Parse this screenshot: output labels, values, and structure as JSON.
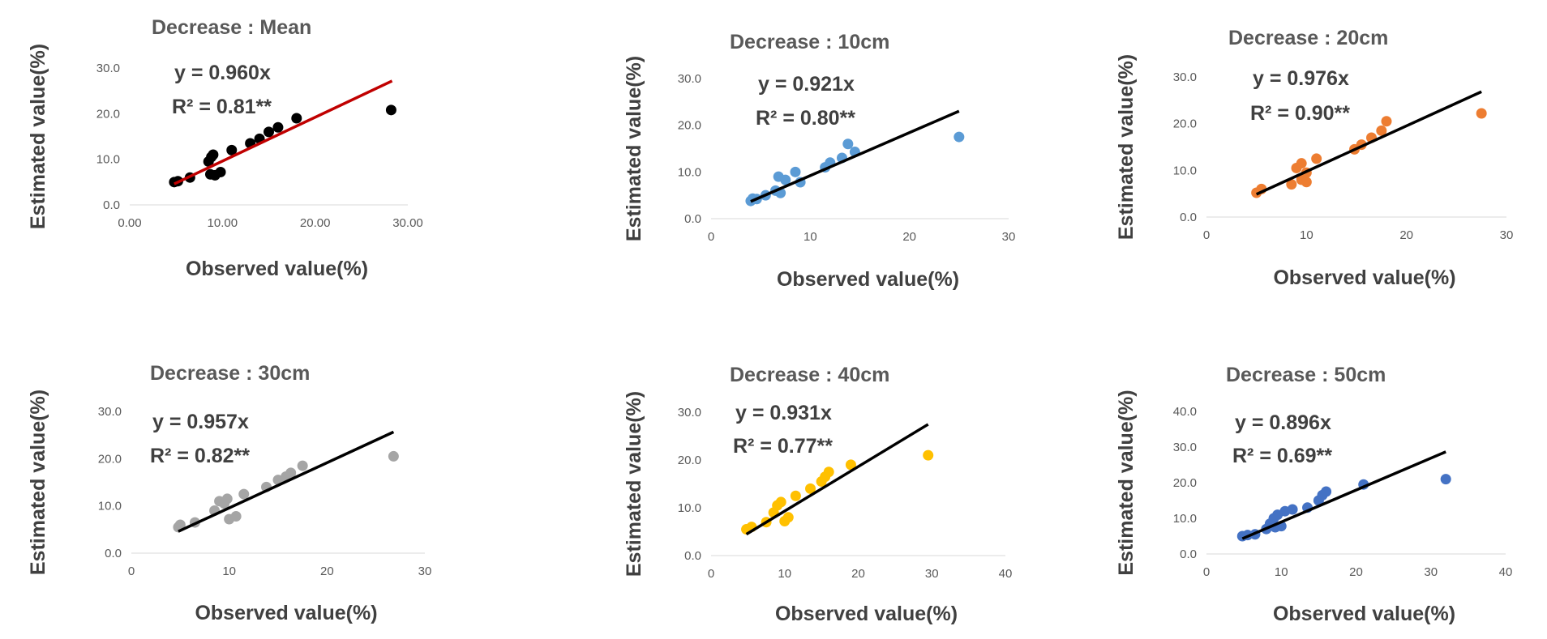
{
  "chart_data": [
    {
      "type": "scatter",
      "title": "Decrease : Mean",
      "xlabel": "Observed value(%)",
      "ylabel": "Estimated value(%)",
      "xlim": [
        0,
        30
      ],
      "ylim": [
        0,
        30
      ],
      "xticks": [
        "0.00",
        "10.00",
        "20.00",
        "30.00"
      ],
      "yticks": [
        "0.0",
        "10.0",
        "20.0",
        "30.0"
      ],
      "equation": "y = 0.960x",
      "r2": "R² = 0.81**",
      "slope": 0.96,
      "fit_x_range": [
        4.8,
        28.3
      ],
      "point_color": "#000000",
      "line_color": "#c00000",
      "points": [
        [
          4.8,
          5.0
        ],
        [
          5.2,
          5.2
        ],
        [
          6.5,
          6.0
        ],
        [
          8.5,
          9.5
        ],
        [
          8.8,
          10.5
        ],
        [
          9.0,
          11.0
        ],
        [
          8.7,
          6.7
        ],
        [
          9.2,
          6.5
        ],
        [
          9.8,
          7.2
        ],
        [
          11.0,
          12.0
        ],
        [
          13.0,
          13.5
        ],
        [
          14.0,
          14.5
        ],
        [
          15.0,
          16.0
        ],
        [
          16.0,
          17.0
        ],
        [
          18.0,
          19.0
        ],
        [
          28.2,
          20.8
        ]
      ]
    },
    {
      "type": "scatter",
      "title": "Decrease : 10cm",
      "xlabel": "Observed value(%)",
      "ylabel": "Estimated value(%)",
      "xlim": [
        0,
        30
      ],
      "ylim": [
        0,
        30
      ],
      "xticks": [
        "0",
        "10",
        "20",
        "30"
      ],
      "yticks": [
        "0.0",
        "10.0",
        "20.0",
        "30.0"
      ],
      "equation": "y = 0.921x",
      "r2": "R² = 0.80**",
      "slope": 0.921,
      "fit_x_range": [
        4.0,
        25.0
      ],
      "point_color": "#5b9bd5",
      "line_color": "#000000",
      "points": [
        [
          4.0,
          3.8
        ],
        [
          4.2,
          4.3
        ],
        [
          4.6,
          4.2
        ],
        [
          5.5,
          5.0
        ],
        [
          6.5,
          6.0
        ],
        [
          6.8,
          9.0
        ],
        [
          7.0,
          5.5
        ],
        [
          7.5,
          8.3
        ],
        [
          8.5,
          10.0
        ],
        [
          9.0,
          7.8
        ],
        [
          11.5,
          11.0
        ],
        [
          12.0,
          12.0
        ],
        [
          13.2,
          13.0
        ],
        [
          13.8,
          16.0
        ],
        [
          14.5,
          14.3
        ],
        [
          25.0,
          17.5
        ]
      ]
    },
    {
      "type": "scatter",
      "title": "Decrease : 20cm",
      "xlabel": "Observed value(%)",
      "ylabel": "Estimated value(%)",
      "xlim": [
        0,
        30
      ],
      "ylim": [
        0,
        30
      ],
      "xticks": [
        "0",
        "10",
        "20",
        "30"
      ],
      "yticks": [
        "0.0",
        "10.0",
        "20.0",
        "30.0"
      ],
      "equation": "y = 0.976x",
      "r2": "R² = 0.90**",
      "slope": 0.976,
      "fit_x_range": [
        5.0,
        27.5
      ],
      "point_color": "#ed7d31",
      "line_color": "#000000",
      "points": [
        [
          5.0,
          5.2
        ],
        [
          5.5,
          6.0
        ],
        [
          8.5,
          7.0
        ],
        [
          9.0,
          10.5
        ],
        [
          9.5,
          11.5
        ],
        [
          9.5,
          8.0
        ],
        [
          10.0,
          7.5
        ],
        [
          10.0,
          9.5
        ],
        [
          11.0,
          12.5
        ],
        [
          14.8,
          14.5
        ],
        [
          15.5,
          15.5
        ],
        [
          16.5,
          17.0
        ],
        [
          17.5,
          18.5
        ],
        [
          18.0,
          20.5
        ],
        [
          27.5,
          22.2
        ]
      ]
    },
    {
      "type": "scatter",
      "title": "Decrease : 30cm",
      "xlabel": "Observed value(%)",
      "ylabel": "Estimated value(%)",
      "xlim": [
        0,
        30
      ],
      "ylim": [
        0,
        30
      ],
      "xticks": [
        "0",
        "10",
        "20",
        "30"
      ],
      "yticks": [
        "0.0",
        "10.0",
        "20.0",
        "30.0"
      ],
      "equation": "y = 0.957x",
      "r2": "R² = 0.82**",
      "slope": 0.957,
      "fit_x_range": [
        4.8,
        26.8
      ],
      "point_color": "#a5a5a5",
      "line_color": "#000000",
      "points": [
        [
          4.8,
          5.5
        ],
        [
          5.0,
          6.0
        ],
        [
          6.5,
          6.5
        ],
        [
          8.5,
          9.0
        ],
        [
          9.0,
          11.0
        ],
        [
          9.5,
          10.5
        ],
        [
          9.8,
          11.5
        ],
        [
          10.0,
          7.2
        ],
        [
          10.7,
          7.8
        ],
        [
          11.5,
          12.5
        ],
        [
          13.8,
          14.0
        ],
        [
          15.0,
          15.5
        ],
        [
          15.8,
          16.2
        ],
        [
          16.3,
          17.0
        ],
        [
          17.5,
          18.5
        ],
        [
          26.8,
          20.5
        ]
      ]
    },
    {
      "type": "scatter",
      "title": "Decrease : 40cm",
      "xlabel": "Observed value(%)",
      "ylabel": "Estimated value(%)",
      "xlim": [
        0,
        40
      ],
      "ylim": [
        0,
        30
      ],
      "xticks": [
        "0",
        "10",
        "20",
        "30",
        "40"
      ],
      "yticks": [
        "0.0",
        "10.0",
        "20.0",
        "30.0"
      ],
      "equation": "y = 0.931x",
      "r2": "R² = 0.77**",
      "slope": 0.931,
      "fit_x_range": [
        4.8,
        29.5
      ],
      "point_color": "#ffc000",
      "line_color": "#000000",
      "points": [
        [
          4.8,
          5.5
        ],
        [
          5.5,
          6.0
        ],
        [
          7.5,
          7.0
        ],
        [
          8.5,
          9.0
        ],
        [
          9.0,
          10.5
        ],
        [
          9.5,
          11.2
        ],
        [
          10.0,
          7.2
        ],
        [
          10.5,
          8.0
        ],
        [
          11.5,
          12.5
        ],
        [
          13.5,
          14.0
        ],
        [
          15.0,
          15.5
        ],
        [
          15.5,
          16.5
        ],
        [
          16.0,
          17.5
        ],
        [
          19.0,
          19.0
        ],
        [
          29.5,
          21.0
        ]
      ]
    },
    {
      "type": "scatter",
      "title": "Decrease : 50cm",
      "xlabel": "Observed value(%)",
      "ylabel": "Estimated value(%)",
      "xlim": [
        0,
        40
      ],
      "ylim": [
        0,
        40
      ],
      "xticks": [
        "0",
        "10",
        "20",
        "30",
        "40"
      ],
      "yticks": [
        "0.0",
        "10.0",
        "20.0",
        "30.0",
        "40.0"
      ],
      "equation": "y = 0.896x",
      "r2": "R² = 0.69**",
      "slope": 0.896,
      "fit_x_range": [
        4.8,
        32.0
      ],
      "point_color": "#4472c4",
      "line_color": "#000000",
      "points": [
        [
          4.8,
          5.0
        ],
        [
          5.5,
          5.3
        ],
        [
          6.5,
          5.5
        ],
        [
          8.0,
          7.0
        ],
        [
          8.5,
          8.5
        ],
        [
          9.0,
          10.0
        ],
        [
          9.2,
          7.5
        ],
        [
          9.5,
          11.0
        ],
        [
          10.0,
          7.8
        ],
        [
          10.5,
          12.0
        ],
        [
          11.5,
          12.5
        ],
        [
          13.5,
          13.0
        ],
        [
          15.0,
          15.0
        ],
        [
          15.5,
          16.5
        ],
        [
          16.0,
          17.5
        ],
        [
          21.0,
          19.5
        ],
        [
          32.0,
          21.0
        ]
      ]
    }
  ]
}
